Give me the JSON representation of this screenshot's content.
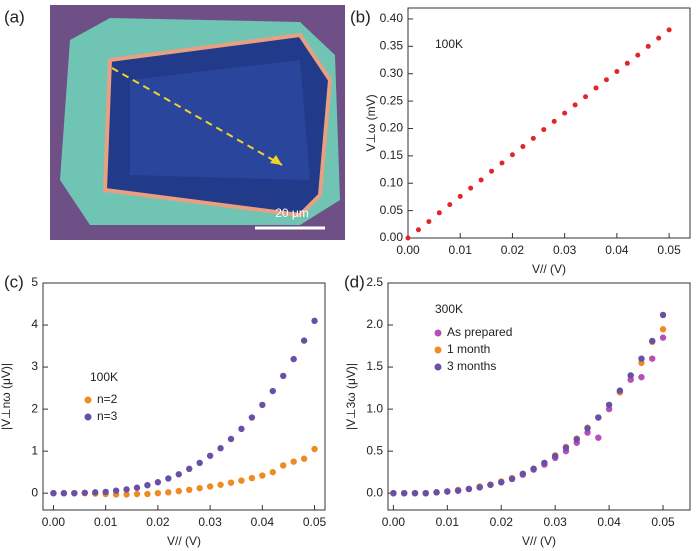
{
  "chart_data": [
    {
      "type": "image",
      "label": "(a)",
      "scale_bar": "20 μm"
    },
    {
      "type": "scatter",
      "label": "(b)",
      "annotation": "100K",
      "xlabel": "V// (V)",
      "ylabel": "V⊥ω (mV)",
      "x": [
        0,
        0.002,
        0.004,
        0.006,
        0.008,
        0.01,
        0.012,
        0.014,
        0.016,
        0.018,
        0.02,
        0.022,
        0.024,
        0.026,
        0.028,
        0.03,
        0.032,
        0.034,
        0.036,
        0.038,
        0.04,
        0.042,
        0.044,
        0.046,
        0.048,
        0.05
      ],
      "series": [
        {
          "color": "#e0262a",
          "values": [
            0,
            0.015,
            0.03,
            0.046,
            0.061,
            0.076,
            0.091,
            0.106,
            0.122,
            0.137,
            0.152,
            0.167,
            0.182,
            0.198,
            0.213,
            0.228,
            0.243,
            0.258,
            0.274,
            0.289,
            0.304,
            0.319,
            0.334,
            0.35,
            0.365,
            0.38
          ]
        }
      ],
      "xlim": [
        0,
        0.054
      ],
      "ylim": [
        0,
        0.42
      ],
      "xticks": [
        {
          "value": 0,
          "label": "0.00"
        },
        0.01,
        0.02,
        0.03,
        0.04,
        0.05
      ],
      "yticks": [
        {
          "value": 0,
          "label": "0.00"
        },
        0.05,
        {
          "value": 0.1,
          "label": "0.10"
        },
        0.15,
        {
          "value": 0.2,
          "label": "0.20"
        },
        0.25,
        {
          "value": 0.3,
          "label": "0.30"
        },
        0.35,
        {
          "value": 0.4,
          "label": "0.40"
        }
      ]
    },
    {
      "type": "scatter",
      "label": "(c)",
      "annotation": "100K",
      "legend": "center left",
      "xlabel": "V// (V)",
      "ylabel": "|V⊥nω (μV)|",
      "x": [
        0,
        0.002,
        0.004,
        0.006,
        0.008,
        0.01,
        0.012,
        0.014,
        0.016,
        0.018,
        0.02,
        0.022,
        0.024,
        0.026,
        0.028,
        0.03,
        0.032,
        0.034,
        0.036,
        0.038,
        0.04,
        0.042,
        0.044,
        0.046,
        0.048,
        0.05
      ],
      "series": [
        {
          "name": "n=2",
          "color": "#f08a24",
          "values": [
            0,
            0,
            0,
            0,
            -0.01,
            -0.02,
            -0.03,
            -0.03,
            -0.02,
            -0.02,
            0,
            0.02,
            0.05,
            0.08,
            0.12,
            0.16,
            0.2,
            0.25,
            0.3,
            0.36,
            0.42,
            0.5,
            0.66,
            0.75,
            0.82,
            1.05
          ]
        },
        {
          "name": "n=3",
          "color": "#6a4fa8",
          "values": [
            0,
            0,
            0,
            0.01,
            0.02,
            0.03,
            0.06,
            0.09,
            0.13,
            0.19,
            0.26,
            0.35,
            0.45,
            0.58,
            0.72,
            0.89,
            1.07,
            1.29,
            1.53,
            1.8,
            2.1,
            2.43,
            2.79,
            3.19,
            3.63,
            4.1
          ]
        }
      ],
      "xlim": [
        -0.002,
        0.052
      ],
      "ylim": [
        -0.4,
        5
      ],
      "xticks": [
        {
          "value": 0,
          "label": "0.00"
        },
        0.01,
        0.02,
        0.03,
        0.04,
        0.05
      ],
      "yticks": [
        0,
        1,
        2,
        3,
        4,
        5
      ]
    },
    {
      "type": "scatter",
      "label": "(d)",
      "annotation": "300K",
      "legend": "upper left",
      "xlabel": "V// (V)",
      "ylabel": "|V⊥3ω (μV)|",
      "x": [
        0,
        0.002,
        0.004,
        0.006,
        0.008,
        0.01,
        0.012,
        0.014,
        0.016,
        0.018,
        0.02,
        0.022,
        0.024,
        0.026,
        0.028,
        0.03,
        0.032,
        0.034,
        0.036,
        0.038,
        0.04,
        0.042,
        0.044,
        0.046,
        0.048,
        0.05
      ],
      "series": [
        {
          "name": "As prepared",
          "color": "#b84fb8",
          "values": [
            0,
            0,
            0,
            0,
            0.01,
            0.02,
            0.03,
            0.05,
            0.07,
            0.1,
            0.13,
            0.17,
            0.22,
            0.28,
            0.34,
            0.42,
            0.5,
            0.6,
            0.72,
            0.66,
            1.0,
            1.2,
            1.35,
            1.38,
            1.6,
            1.85
          ]
        },
        {
          "name": "1 month",
          "color": "#f08a24",
          "values": [
            0,
            0,
            0,
            0,
            0.01,
            0.02,
            0.04,
            0.05,
            0.08,
            0.1,
            0.14,
            0.18,
            0.23,
            0.29,
            0.36,
            0.45,
            0.55,
            0.65,
            0.78,
            0.9,
            1.05,
            1.2,
            1.4,
            1.55,
            1.8,
            1.95
          ]
        },
        {
          "name": "3 months",
          "color": "#6a4fa8",
          "values": [
            0,
            0,
            0,
            0,
            0.01,
            0.02,
            0.03,
            0.05,
            0.07,
            0.1,
            0.13,
            0.17,
            0.23,
            0.29,
            0.36,
            0.44,
            0.54,
            0.64,
            0.77,
            0.9,
            1.05,
            1.22,
            1.4,
            1.6,
            1.81,
            2.12
          ]
        }
      ],
      "xlim": [
        -0.001,
        0.055
      ],
      "ylim": [
        -0.2,
        2.5
      ],
      "xticks": [
        {
          "value": 0,
          "label": "0.00"
        },
        0.01,
        0.02,
        0.03,
        0.04,
        0.05
      ],
      "yticks": [
        {
          "value": 0,
          "label": "0.0"
        },
        0.5,
        {
          "value": 1,
          "label": "1.0"
        },
        1.5,
        {
          "value": 2,
          "label": "2.0"
        },
        2.5
      ]
    }
  ]
}
